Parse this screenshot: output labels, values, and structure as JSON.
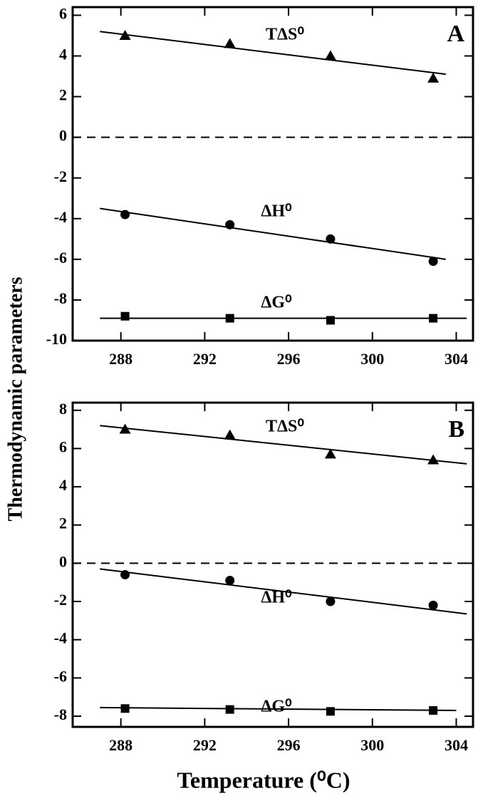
{
  "chart_data": [
    {
      "type": "scatter",
      "panel": "A",
      "ylabel": "Thermodynamic parameters",
      "x": [
        288.2,
        293.2,
        298,
        302.9
      ],
      "xlim": [
        285.7,
        304.8
      ],
      "xticks": [
        288,
        292,
        296,
        300,
        304
      ],
      "ylim": [
        -10,
        6.4
      ],
      "yticks": [
        -10,
        -8,
        -6,
        -4,
        -2,
        0,
        2,
        4,
        6
      ],
      "hline": 0,
      "series": [
        {
          "name": "TΔS⁰",
          "marker": "triangle",
          "color": "#000000",
          "values": [
            5.0,
            4.6,
            4.0,
            2.9
          ],
          "fit": {
            "x": [
              287,
              303.5
            ],
            "y": [
              5.2,
              3.1
            ]
          }
        },
        {
          "name": "ΔH⁰",
          "marker": "circle",
          "color": "#000000",
          "values": [
            -3.8,
            -4.3,
            -5.0,
            -6.1
          ],
          "fit": {
            "x": [
              287,
              303.5
            ],
            "y": [
              -3.5,
              -6.0
            ]
          }
        },
        {
          "name": "ΔG⁰",
          "marker": "square",
          "color": "#000000",
          "values": [
            -8.8,
            -8.9,
            -9.0,
            -8.9
          ],
          "fit": {
            "x": [
              287,
              304.5
            ],
            "y": [
              -8.9,
              -8.9
            ]
          }
        }
      ]
    },
    {
      "type": "scatter",
      "panel": "B",
      "xlabel": "Temperature (⁰C)",
      "x": [
        288.2,
        293.2,
        298,
        302.9
      ],
      "xlim": [
        285.7,
        304.8
      ],
      "xticks": [
        288,
        292,
        296,
        300,
        304
      ],
      "ylim": [
        -8.56,
        8.4
      ],
      "yticks": [
        -8,
        -6,
        -4,
        -2,
        0,
        2,
        4,
        6,
        8
      ],
      "hline": 0,
      "series": [
        {
          "name": "TΔS⁰",
          "marker": "triangle",
          "color": "#000000",
          "values": [
            7.0,
            6.7,
            5.7,
            5.4
          ],
          "fit": {
            "x": [
              287,
              304.5
            ],
            "y": [
              7.2,
              5.2
            ]
          }
        },
        {
          "name": "ΔH⁰",
          "marker": "circle",
          "color": "#000000",
          "values": [
            -0.6,
            -0.9,
            -2.0,
            -2.2
          ],
          "fit": {
            "x": [
              287,
              304.5
            ],
            "y": [
              -0.3,
              -2.65
            ]
          }
        },
        {
          "name": "ΔG⁰",
          "marker": "square",
          "color": "#000000",
          "values": [
            -7.6,
            -7.65,
            -7.75,
            -7.7
          ],
          "fit": {
            "x": [
              287,
              304
            ],
            "y": [
              -7.55,
              -7.7
            ]
          }
        }
      ]
    }
  ]
}
